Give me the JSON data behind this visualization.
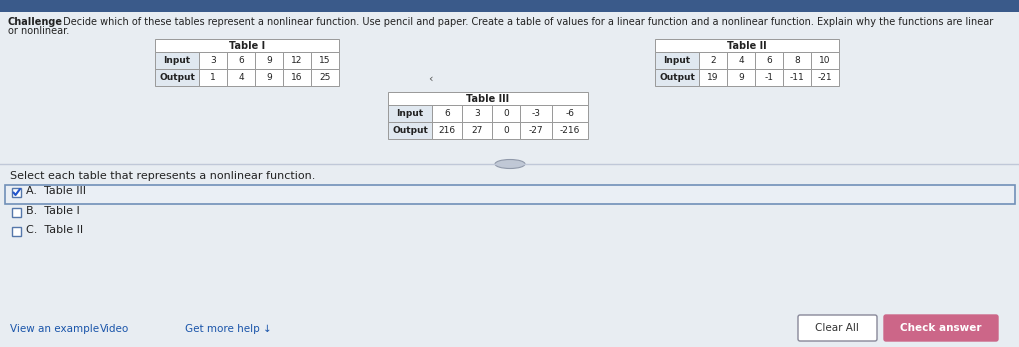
{
  "challenge_text_bold": "Challenge",
  "challenge_text_rest": " Decide which of these tables represent a nonlinear function. Use pencil and paper. Create a table of values for a linear function and a nonlinear function. Explain why the functions are linear",
  "challenge_text_line2": "or nonlinear.",
  "header_bar_color": "#3a5a8a",
  "page_bg": "#e8edf2",
  "table1": {
    "title": "Table I",
    "headers": [
      "Input",
      "3",
      "6",
      "9",
      "12",
      "15"
    ],
    "row2": [
      "Output",
      "1",
      "4",
      "9",
      "16",
      "25"
    ]
  },
  "table2": {
    "title": "Table II",
    "headers": [
      "Input",
      "2",
      "4",
      "6",
      "8",
      "10"
    ],
    "row2": [
      "Output",
      "19",
      "9",
      "-1",
      "-11",
      "-21"
    ]
  },
  "table3": {
    "title": "Table III",
    "headers": [
      "Input",
      "6",
      "3",
      "0",
      "-3",
      "-6"
    ],
    "row2": [
      "Output",
      "216",
      "27",
      "0",
      "-27",
      "-216"
    ]
  },
  "instruction": "Select each table that represents a nonlinear function.",
  "options": [
    {
      "label": "A.  Table III",
      "checked": true,
      "highlighted": true
    },
    {
      "label": "B.  Table I",
      "checked": false,
      "highlighted": false
    },
    {
      "label": "C.  Table II",
      "checked": false,
      "highlighted": false
    }
  ],
  "bottom_links": [
    "View an example",
    "Video",
    "Get more help ↓"
  ],
  "btn_clear": "Clear All",
  "btn_check": "Check answer",
  "divider_color": "#c0c8d8",
  "table_header_bg": "#e0e8f0",
  "table_bg": "#ffffff",
  "option_a_bg": "#eaeff5",
  "option_a_border": "#7090b8",
  "text_color": "#222222",
  "link_color": "#1a55aa"
}
